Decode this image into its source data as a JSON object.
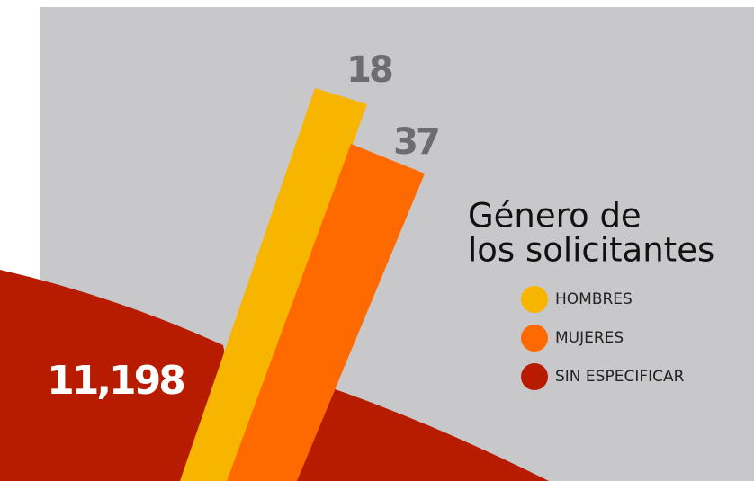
{
  "chart_data": {
    "type": "infographic",
    "title": [
      "Género de",
      "los solicitantes"
    ],
    "categories": [
      "HOMBRES",
      "MUJERES",
      "SIN ESPECIFICAR"
    ],
    "values": [
      18,
      37,
      11198
    ],
    "value_labels": [
      "18",
      "37",
      "11,198"
    ],
    "colors": [
      "#f7b500",
      "#ff6a00",
      "#b71c00"
    ],
    "background": "#c8c8ca"
  }
}
